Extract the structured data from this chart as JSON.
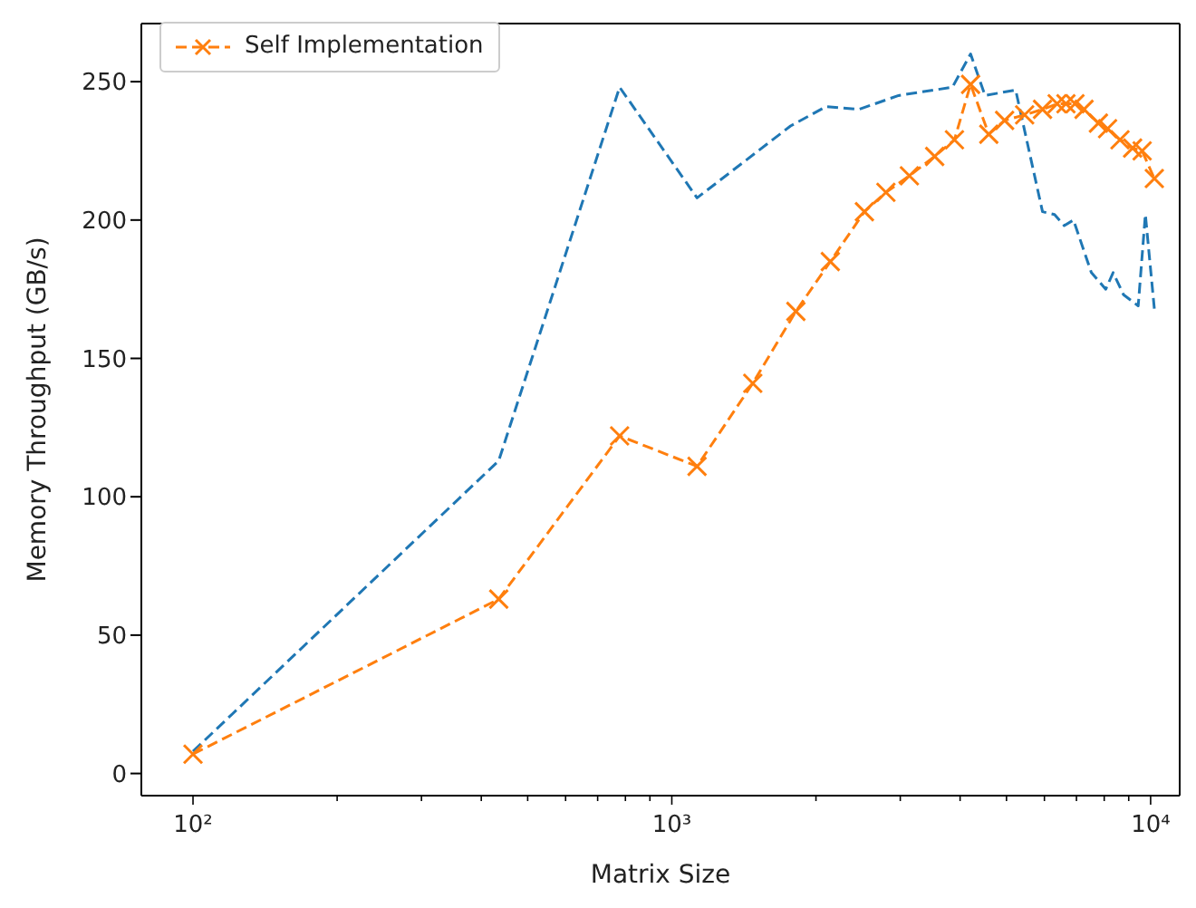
{
  "chart_data": {
    "type": "line",
    "xlabel": "Matrix Size",
    "ylabel": "Memory Throughput (GB/s)",
    "log": "x",
    "xlim": [
      78,
      11500
    ],
    "ylim": [
      -8,
      271
    ],
    "xticks": [
      {
        "value": 100,
        "label": "10²"
      },
      {
        "value": 200,
        "label": null
      },
      {
        "value": 300,
        "label": null
      },
      {
        "value": 400,
        "label": null
      },
      {
        "value": 500,
        "label": null
      },
      {
        "value": 600,
        "label": null
      },
      {
        "value": 700,
        "label": null
      },
      {
        "value": 800,
        "label": null
      },
      {
        "value": 900,
        "label": null
      },
      {
        "value": 1000,
        "label": "10³"
      },
      {
        "value": 2000,
        "label": null
      },
      {
        "value": 3000,
        "label": null
      },
      {
        "value": 4000,
        "label": null
      },
      {
        "value": 5000,
        "label": null
      },
      {
        "value": 6000,
        "label": null
      },
      {
        "value": 7000,
        "label": null
      },
      {
        "value": 8000,
        "label": null
      },
      {
        "value": 9000,
        "label": null
      },
      {
        "value": 10000,
        "label": "10⁴"
      }
    ],
    "yticks": [
      0,
      50,
      100,
      150,
      200,
      250
    ],
    "grid": false,
    "legend": "top left",
    "line_style": "dashed",
    "series": [
      {
        "color": "#1f77b4",
        "marker": "none",
        "x": [
          100,
          435,
          778,
          1129,
          1770,
          2100,
          2460,
          2976,
          3855,
          4207,
          4510,
          5225,
          5946,
          6300,
          6600,
          6900,
          7520,
          8060,
          8350,
          8780,
          9420,
          9750,
          10180
        ],
        "values": [
          8,
          113,
          248,
          208,
          234,
          241,
          240,
          245,
          248,
          260,
          245,
          247,
          203,
          202,
          198,
          200,
          181,
          175,
          181,
          173,
          169,
          202,
          168
        ]
      },
      {
        "name": "Self Implementation",
        "color": "#ff7f0e",
        "marker": "cross",
        "x": [
          100,
          435,
          778,
          1129,
          1476,
          1816,
          2143,
          2525,
          2800,
          3135,
          3540,
          3893,
          4207,
          4592,
          4955,
          5456,
          5946,
          6380,
          6655,
          6950,
          7260,
          7780,
          8130,
          8630,
          9170,
          9600,
          10180
        ],
        "values": [
          7,
          63,
          122,
          111,
          141,
          167,
          185,
          203,
          210,
          216,
          223,
          229,
          249,
          231,
          236,
          238,
          240,
          242,
          242,
          242,
          240,
          235,
          233,
          229,
          226,
          225,
          215
        ]
      }
    ]
  }
}
